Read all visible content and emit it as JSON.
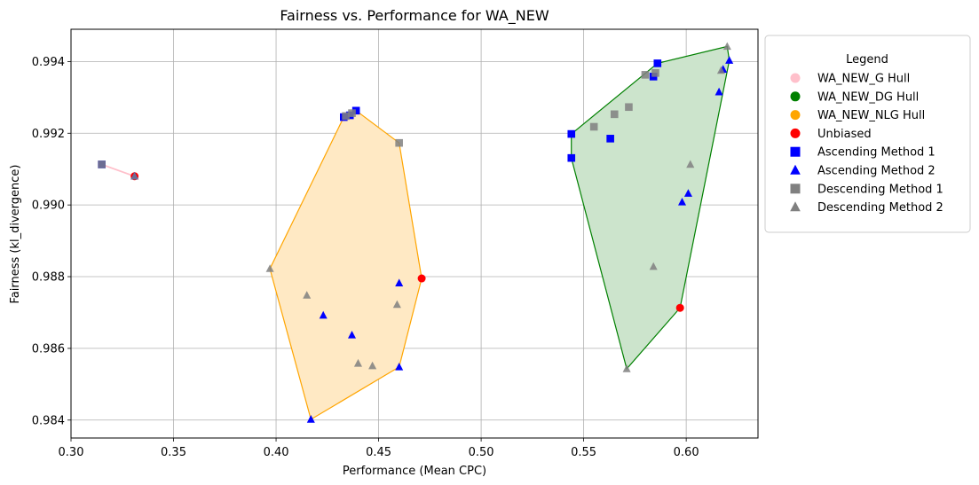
{
  "chart_data": {
    "type": "scatter",
    "title": "Fairness vs. Performance for WA_NEW",
    "xlabel": "Performance (Mean CPC)",
    "ylabel": "Fairness (kl_divergence)",
    "xlim": [
      0.3,
      0.635
    ],
    "ylim": [
      0.9835,
      0.9949
    ],
    "xticks": [
      "0.30",
      "0.35",
      "0.40",
      "0.45",
      "0.50",
      "0.55",
      "0.60"
    ],
    "yticks": [
      "0.984",
      "0.986",
      "0.988",
      "0.990",
      "0.992",
      "0.994"
    ],
    "grid": true,
    "legend": {
      "title": "Legend",
      "placement": "outside-right",
      "entries": [
        {
          "label": "WA_NEW_G Hull",
          "color": "#ffc0cb",
          "marker": "circle"
        },
        {
          "label": "WA_NEW_DG Hull",
          "color": "#008000",
          "marker": "circle"
        },
        {
          "label": "WA_NEW_NLG Hull",
          "color": "#ffa500",
          "marker": "circle"
        },
        {
          "label": "Unbiased",
          "color": "#ff0000",
          "marker": "circle"
        },
        {
          "label": "Ascending Method 1",
          "color": "#0000ff",
          "marker": "square"
        },
        {
          "label": "Ascending Method 2",
          "color": "#0000ff",
          "marker": "triangle"
        },
        {
          "label": "Descending Method 1",
          "color": "#808080",
          "marker": "square"
        },
        {
          "label": "Descending Method 2",
          "color": "#808080",
          "marker": "triangle"
        }
      ]
    },
    "hulls": [
      {
        "name": "WA_NEW_G Hull",
        "line_color": "#ffc0cb",
        "fill": "none",
        "points": [
          [
            0.315,
            0.99113
          ],
          [
            0.331,
            0.9908
          ]
        ]
      },
      {
        "name": "WA_NEW_NLG Hull",
        "line_color": "#ffa500",
        "fill": "#ffe9c4",
        "points": [
          [
            0.397,
            0.98822
          ],
          [
            0.417,
            0.98402
          ],
          [
            0.46,
            0.98548
          ],
          [
            0.471,
            0.98795
          ],
          [
            0.46,
            0.99173
          ],
          [
            0.439,
            0.99263
          ],
          [
            0.433,
            0.99245
          ]
        ]
      },
      {
        "name": "WA_NEW_DG Hull",
        "line_color": "#008000",
        "fill": "#cce4cc",
        "points": [
          [
            0.544,
            0.99198
          ],
          [
            0.544,
            0.99131
          ],
          [
            0.571,
            0.98543
          ],
          [
            0.597,
            0.98713
          ],
          [
            0.621,
            0.99403
          ],
          [
            0.62,
            0.99442
          ],
          [
            0.586,
            0.99395
          ]
        ]
      }
    ],
    "series": [
      {
        "name": "Unbiased",
        "marker": "circle",
        "color": "#ff0000",
        "points": [
          [
            0.331,
            0.9908
          ],
          [
            0.471,
            0.98795
          ],
          [
            0.597,
            0.98713
          ]
        ]
      },
      {
        "name": "Ascending Method 1",
        "marker": "square",
        "color": "#0000ff",
        "points": [
          [
            0.315,
            0.99113
          ],
          [
            0.433,
            0.99245
          ],
          [
            0.436,
            0.9925
          ],
          [
            0.439,
            0.99263
          ],
          [
            0.544,
            0.99198
          ],
          [
            0.544,
            0.99131
          ],
          [
            0.563,
            0.99185
          ],
          [
            0.584,
            0.99358
          ],
          [
            0.586,
            0.99395
          ]
        ]
      },
      {
        "name": "Ascending Method 2",
        "marker": "triangle",
        "color": "#0000ff",
        "points": [
          [
            0.331,
            0.9908
          ],
          [
            0.417,
            0.98402
          ],
          [
            0.423,
            0.98692
          ],
          [
            0.437,
            0.98637
          ],
          [
            0.46,
            0.98548
          ],
          [
            0.46,
            0.98782
          ],
          [
            0.598,
            0.99008
          ],
          [
            0.601,
            0.99032
          ],
          [
            0.616,
            0.99315
          ],
          [
            0.618,
            0.99378
          ],
          [
            0.621,
            0.99403
          ]
        ]
      },
      {
        "name": "Descending Method 1",
        "marker": "square",
        "color": "#808080",
        "points": [
          [
            0.315,
            0.99113
          ],
          [
            0.434,
            0.99248
          ],
          [
            0.437,
            0.99256
          ],
          [
            0.46,
            0.99173
          ],
          [
            0.555,
            0.99218
          ],
          [
            0.565,
            0.99253
          ],
          [
            0.572,
            0.99273
          ],
          [
            0.58,
            0.99363
          ],
          [
            0.585,
            0.99368
          ]
        ]
      },
      {
        "name": "Descending Method 2",
        "marker": "triangle",
        "color": "#808080",
        "points": [
          [
            0.331,
            0.9908
          ],
          [
            0.397,
            0.98822
          ],
          [
            0.415,
            0.98748
          ],
          [
            0.44,
            0.98558
          ],
          [
            0.447,
            0.98551
          ],
          [
            0.459,
            0.98722
          ],
          [
            0.571,
            0.98543
          ],
          [
            0.584,
            0.98828
          ],
          [
            0.602,
            0.99113
          ],
          [
            0.617,
            0.99375
          ],
          [
            0.62,
            0.99442
          ]
        ]
      }
    ]
  }
}
